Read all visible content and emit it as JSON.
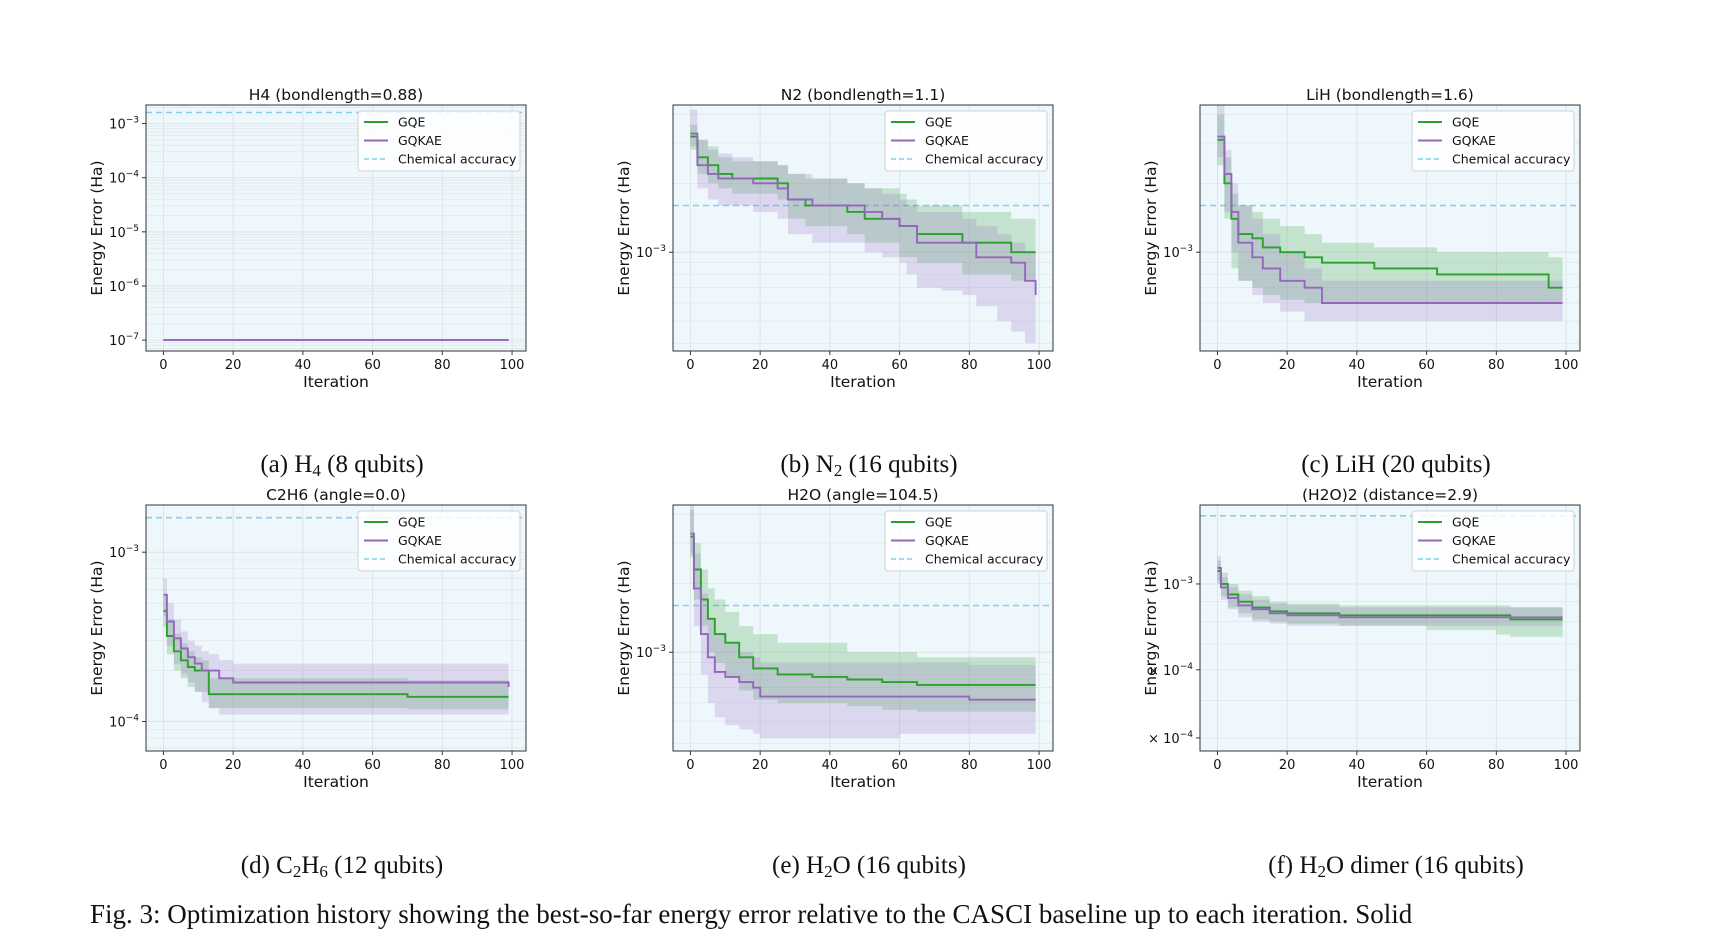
{
  "legend_labels": [
    "GQE",
    "GQKAE",
    "Chemical accuracy"
  ],
  "colors": {
    "gqe": "#2ca02c",
    "gqkae": "#9467bd",
    "chem_acc": "#87ceeb",
    "plot_bg": "#eef7fc",
    "grid": "#dfe3e6"
  },
  "figure_caption": "Fig. 3: Optimization history showing the best-so-far energy error relative to the CASCI baseline up to each iteration. Solid",
  "chart_data": [
    {
      "type": "line",
      "title": "H4 (bondlength=0.88)",
      "caption": {
        "prefix": "(a) H",
        "sub": "4",
        "suffix": " (8 qubits)"
      },
      "xlabel": "Iteration",
      "ylabel": "Energy Error (Ha)",
      "yscale": "log",
      "xlim": [
        -5,
        104
      ],
      "ylim": [
        6.3e-08,
        0.0022
      ],
      "xticks": [
        0,
        20,
        40,
        60,
        80,
        100
      ],
      "yticks": [
        {
          "v": 0.001,
          "base": "10",
          "exp": "−3"
        },
        {
          "v": 0.0001,
          "base": "10",
          "exp": "−4"
        },
        {
          "v": 1e-05,
          "base": "10",
          "exp": "−5"
        },
        {
          "v": 1e-06,
          "base": "10",
          "exp": "−6"
        },
        {
          "v": 1e-07,
          "base": "10",
          "exp": "−7"
        }
      ],
      "chemical_accuracy": 0.0016,
      "grid": true,
      "legend": "top-right",
      "series": [
        {
          "name": "GQE",
          "color": "#2ca02c",
          "x": [
            0,
            99
          ],
          "y": [
            1e-07,
            1e-07
          ],
          "lower": [
            1e-07,
            1e-07
          ],
          "upper": [
            1e-07,
            1e-07
          ]
        },
        {
          "name": "GQKAE",
          "color": "#9467bd",
          "x": [
            0,
            99
          ],
          "y": [
            1e-07,
            1e-07
          ],
          "lower": [
            1e-07,
            1e-07
          ],
          "upper": [
            1e-07,
            1e-07
          ]
        }
      ]
    },
    {
      "type": "line",
      "title": "N2 (bondlength=1.1)",
      "caption": {
        "prefix": "(b) N",
        "sub": "2",
        "suffix": " (16 qubits)"
      },
      "xlabel": "Iteration",
      "ylabel": "Energy Error (Ha)",
      "yscale": "log",
      "xlim": [
        -5,
        104
      ],
      "ylim": [
        0.00037,
        0.0044
      ],
      "xticks": [
        0,
        20,
        40,
        60,
        80,
        100
      ],
      "yticks": [
        {
          "v": 0.001,
          "base": "10",
          "exp": "−3"
        }
      ],
      "chemical_accuracy": 0.0016,
      "grid": true,
      "legend": "top-right",
      "series": [
        {
          "name": "GQE",
          "color": "#2ca02c",
          "x": [
            0,
            2,
            5,
            8,
            12,
            18,
            25,
            28,
            33,
            40,
            45,
            50,
            55,
            60,
            62,
            65,
            72,
            78,
            85,
            92,
            99
          ],
          "y": [
            0.0032,
            0.0026,
            0.0024,
            0.0022,
            0.0021,
            0.0021,
            0.002,
            0.0017,
            0.0016,
            0.0016,
            0.0015,
            0.0014,
            0.0014,
            0.0013,
            0.0013,
            0.0012,
            0.0012,
            0.0011,
            0.0011,
            0.001,
            0.001
          ],
          "lower": [
            0.0028,
            0.0022,
            0.002,
            0.0019,
            0.0018,
            0.0018,
            0.0017,
            0.0014,
            0.0013,
            0.0013,
            0.0012,
            0.0011,
            0.0011,
            0.00095,
            0.00095,
            0.0009,
            0.0009,
            0.0008,
            0.0008,
            0.00075,
            0.00075
          ],
          "upper": [
            0.0036,
            0.0031,
            0.0029,
            0.0026,
            0.0025,
            0.0025,
            0.0024,
            0.0022,
            0.0021,
            0.0021,
            0.002,
            0.0019,
            0.0019,
            0.0018,
            0.0017,
            0.0016,
            0.0016,
            0.0015,
            0.0015,
            0.0014,
            0.0014
          ]
        },
        {
          "name": "GQKAE",
          "color": "#9467bd",
          "x": [
            0,
            2,
            5,
            8,
            12,
            18,
            25,
            28,
            35,
            45,
            50,
            55,
            60,
            62,
            65,
            72,
            78,
            82,
            88,
            92,
            96,
            99
          ],
          "y": [
            0.0033,
            0.0024,
            0.0022,
            0.0021,
            0.0021,
            0.002,
            0.0019,
            0.0017,
            0.0016,
            0.0016,
            0.0015,
            0.0014,
            0.0013,
            0.0013,
            0.0011,
            0.0011,
            0.0011,
            0.00095,
            0.00095,
            0.0009,
            0.00075,
            0.00065
          ],
          "lower": [
            0.0029,
            0.0019,
            0.0017,
            0.0016,
            0.0016,
            0.0015,
            0.0014,
            0.0012,
            0.0011,
            0.0011,
            0.001,
            0.00095,
            0.0009,
            0.0008,
            0.0007,
            0.00068,
            0.00065,
            0.00058,
            0.0005,
            0.00045,
            0.0004,
            0.00037
          ],
          "upper": [
            0.0042,
            0.0031,
            0.0028,
            0.0027,
            0.0026,
            0.0025,
            0.0024,
            0.0022,
            0.0021,
            0.002,
            0.0019,
            0.0018,
            0.0017,
            0.0016,
            0.0015,
            0.0015,
            0.0014,
            0.0013,
            0.0012,
            0.0011,
            0.001,
            0.0009
          ]
        }
      ]
    },
    {
      "type": "line",
      "title": "LiH (bondlength=1.6)",
      "caption": {
        "prefix": "(c) LiH (20 qubits)",
        "sub": "",
        "suffix": ""
      },
      "xlabel": "Iteration",
      "ylabel": "Energy Error (Ha)",
      "yscale": "log",
      "xlim": [
        -5,
        104
      ],
      "ylim": [
        0.00037,
        0.0044
      ],
      "xticks": [
        0,
        20,
        40,
        60,
        80,
        100
      ],
      "yticks": [
        {
          "v": 0.001,
          "base": "10",
          "exp": "−3"
        }
      ],
      "chemical_accuracy": 0.0016,
      "grid": true,
      "legend": "top-right",
      "series": [
        {
          "name": "GQE",
          "color": "#2ca02c",
          "x": [
            0,
            2,
            4,
            6,
            10,
            13,
            18,
            25,
            30,
            45,
            55,
            63,
            80,
            95,
            99
          ],
          "y": [
            0.0031,
            0.002,
            0.0014,
            0.0012,
            0.00115,
            0.00105,
            0.001,
            0.00095,
            0.0009,
            0.00085,
            0.00085,
            0.0008,
            0.0008,
            0.0007,
            0.0007
          ],
          "lower": [
            0.0024,
            0.0014,
            0.00085,
            0.00075,
            0.0007,
            0.00065,
            0.00062,
            0.0006,
            0.0006,
            0.0006,
            0.0006,
            0.0006,
            0.0006,
            0.0006,
            0.0006
          ],
          "upper": [
            0.004,
            0.0026,
            0.0018,
            0.0016,
            0.0015,
            0.0014,
            0.0013,
            0.0012,
            0.0011,
            0.00105,
            0.00105,
            0.001,
            0.001,
            0.00095,
            0.00095
          ]
        },
        {
          "name": "GQKAE",
          "color": "#9467bd",
          "x": [
            0,
            2,
            4,
            6,
            10,
            13,
            18,
            25,
            30,
            60,
            99
          ],
          "y": [
            0.0032,
            0.0022,
            0.0015,
            0.0011,
            0.00095,
            0.00085,
            0.00075,
            0.0007,
            0.0006,
            0.0006,
            0.0006
          ],
          "lower": [
            0.0026,
            0.0015,
            0.001,
            0.00075,
            0.00065,
            0.0006,
            0.00055,
            0.0005,
            0.0005,
            0.0005,
            0.0005
          ],
          "upper": [
            0.0045,
            0.0028,
            0.002,
            0.0016,
            0.0014,
            0.0012,
            0.001,
            0.00085,
            0.00075,
            0.00075,
            0.00075
          ]
        }
      ]
    },
    {
      "type": "line",
      "title": "C2H6 (angle=0.0)",
      "caption": {
        "prefix": "(d) C",
        "sub": "2",
        "mid": "H",
        "sub2": "6",
        "suffix": " (12 qubits)"
      },
      "xlabel": "Iteration",
      "ylabel": "Energy Error (Ha)",
      "yscale": "log",
      "xlim": [
        -5,
        104
      ],
      "ylim": [
        6.7e-05,
        0.0019
      ],
      "xticks": [
        0,
        20,
        40,
        60,
        80,
        100
      ],
      "yticks": [
        {
          "v": 0.001,
          "base": "10",
          "exp": "−3"
        },
        {
          "v": 0.0001,
          "base": "10",
          "exp": "−4"
        }
      ],
      "chemical_accuracy": 0.0016,
      "grid": true,
      "legend": "top-right",
      "series": [
        {
          "name": "GQE",
          "color": "#2ca02c",
          "x": [
            0,
            1,
            3,
            5,
            7,
            9,
            11,
            13,
            16,
            60,
            70,
            90,
            99
          ],
          "y": [
            0.00045,
            0.00032,
            0.00026,
            0.00023,
            0.00021,
            0.0002,
            0.0002,
            0.000145,
            0.000145,
            0.000145,
            0.00014,
            0.00014,
            0.00014
          ],
          "lower": [
            0.00036,
            0.00025,
            0.0002,
            0.00018,
            0.00016,
            0.00015,
            0.00015,
            0.00012,
            0.00012,
            0.00012,
            0.000118,
            0.000118,
            0.000118
          ],
          "upper": [
            0.00055,
            0.0004,
            0.00033,
            0.00029,
            0.00026,
            0.00024,
            0.00023,
            0.00018,
            0.00018,
            0.00018,
            0.000175,
            0.000175,
            0.000175
          ]
        },
        {
          "name": "GQKAE",
          "color": "#9467bd",
          "x": [
            0,
            1,
            3,
            5,
            7,
            9,
            11,
            13,
            16,
            20,
            99
          ],
          "y": [
            0.00056,
            0.00039,
            0.00031,
            0.00027,
            0.00024,
            0.00022,
            0.0002,
            0.0002,
            0.00018,
            0.00017,
            0.00016
          ],
          "lower": [
            0.00042,
            0.00028,
            0.00022,
            0.00019,
            0.00017,
            0.00015,
            0.00013,
            0.00012,
            0.00011,
            0.00011,
            0.00011
          ],
          "upper": [
            0.0007,
            0.0005,
            0.0004,
            0.00034,
            0.0003,
            0.00028,
            0.00026,
            0.00025,
            0.00023,
            0.00022,
            0.00021
          ]
        }
      ]
    },
    {
      "type": "line",
      "title": "H2O (angle=104.5)",
      "caption": {
        "prefix": "(e) H",
        "sub": "2",
        "suffix": "O (16 qubits)"
      },
      "xlabel": "Iteration",
      "ylabel": "Energy Error (Ha)",
      "yscale": "log",
      "xlim": [
        -5,
        104
      ],
      "ylim": [
        0.00037,
        0.0044
      ],
      "xticks": [
        0,
        20,
        40,
        60,
        80,
        100
      ],
      "yticks": [
        {
          "v": 0.001,
          "base": "10",
          "exp": "−3"
        }
      ],
      "chemical_accuracy": 0.0016,
      "grid": true,
      "legend": "top-right",
      "series": [
        {
          "name": "GQE",
          "color": "#2ca02c",
          "x": [
            0,
            1,
            3,
            5,
            7,
            10,
            14,
            18,
            25,
            35,
            45,
            55,
            65,
            80,
            99
          ],
          "y": [
            0.0032,
            0.0023,
            0.0017,
            0.0014,
            0.0012,
            0.0011,
            0.00095,
            0.00085,
            0.0008,
            0.00078,
            0.00076,
            0.00074,
            0.00072,
            0.00072,
            0.00072
          ],
          "lower": [
            0.0026,
            0.0017,
            0.0013,
            0.001,
            0.0009,
            0.00078,
            0.00068,
            0.00062,
            0.0006,
            0.0006,
            0.00058,
            0.00056,
            0.00055,
            0.00055,
            0.00055
          ],
          "upper": [
            0.0042,
            0.003,
            0.0023,
            0.0019,
            0.0017,
            0.0015,
            0.0013,
            0.0012,
            0.0011,
            0.0011,
            0.001,
            0.001,
            0.00095,
            0.00095,
            0.00095
          ]
        },
        {
          "name": "GQKAE",
          "color": "#9467bd",
          "x": [
            0,
            1,
            3,
            5,
            7,
            10,
            14,
            18,
            20,
            40,
            60,
            80,
            99
          ],
          "y": [
            0.0033,
            0.0019,
            0.0012,
            0.00095,
            0.00082,
            0.00078,
            0.00074,
            0.0007,
            0.00064,
            0.00064,
            0.00064,
            0.00062,
            0.00062
          ],
          "lower": [
            0.0027,
            0.0013,
            0.0008,
            0.0006,
            0.00052,
            0.00048,
            0.00046,
            0.00044,
            0.00042,
            0.00042,
            0.00044,
            0.00044,
            0.00045
          ],
          "upper": [
            0.0045,
            0.0027,
            0.0018,
            0.0014,
            0.0012,
            0.0011,
            0.001,
            0.00095,
            0.0009,
            0.0009,
            0.0009,
            0.00088,
            0.00088
          ]
        }
      ]
    },
    {
      "type": "line",
      "title": "(H2O)2 (distance=2.9)",
      "caption": {
        "prefix": "(f) H",
        "sub": "2",
        "suffix": "O dimer (16 qubits)"
      },
      "xlabel": "Iteration",
      "ylabel": "Energy Error (Ha)",
      "yscale": "log",
      "xlim": [
        -5,
        104
      ],
      "ylim": [
        0.00037,
        0.0016
      ],
      "xticks": [
        0,
        20,
        40,
        60,
        80,
        100
      ],
      "yticks": [
        {
          "v": 0.001,
          "base": "10",
          "exp": "−3"
        },
        {
          "v": 0.0006,
          "base": "6 × 10",
          "exp": "−4"
        },
        {
          "v": 0.0004,
          "base": "4 × 10",
          "exp": "−4"
        }
      ],
      "chemical_accuracy": 0.0015,
      "grid": true,
      "legend": "top-right",
      "series": [
        {
          "name": "GQE",
          "color": "#2ca02c",
          "x": [
            0,
            1,
            3,
            6,
            10,
            15,
            20,
            35,
            60,
            80,
            84,
            99
          ],
          "y": [
            0.00108,
            0.001,
            0.00094,
            0.0009,
            0.00087,
            0.00085,
            0.00084,
            0.00083,
            0.00083,
            0.00083,
            0.00081,
            0.00081
          ],
          "lower": [
            0.001,
            0.00093,
            0.00087,
            0.00084,
            0.00081,
            0.0008,
            0.00079,
            0.00078,
            0.00076,
            0.00074,
            0.00073,
            0.00073
          ],
          "upper": [
            0.00115,
            0.00107,
            0.001,
            0.00096,
            0.00093,
            0.0009,
            0.00089,
            0.00088,
            0.00088,
            0.00088,
            0.00087,
            0.00087
          ]
        },
        {
          "name": "GQKAE",
          "color": "#9467bd",
          "x": [
            0,
            1,
            3,
            6,
            10,
            15,
            20,
            35,
            99
          ],
          "y": [
            0.0011,
            0.00098,
            0.00092,
            0.00088,
            0.00086,
            0.00084,
            0.00083,
            0.00082,
            0.00082
          ],
          "lower": [
            0.00102,
            0.00091,
            0.00086,
            0.00082,
            0.0008,
            0.00079,
            0.00078,
            0.00078,
            0.00078
          ],
          "upper": [
            0.00118,
            0.00104,
            0.00098,
            0.00094,
            0.00091,
            0.00089,
            0.00088,
            0.00087,
            0.00087
          ]
        }
      ]
    }
  ]
}
